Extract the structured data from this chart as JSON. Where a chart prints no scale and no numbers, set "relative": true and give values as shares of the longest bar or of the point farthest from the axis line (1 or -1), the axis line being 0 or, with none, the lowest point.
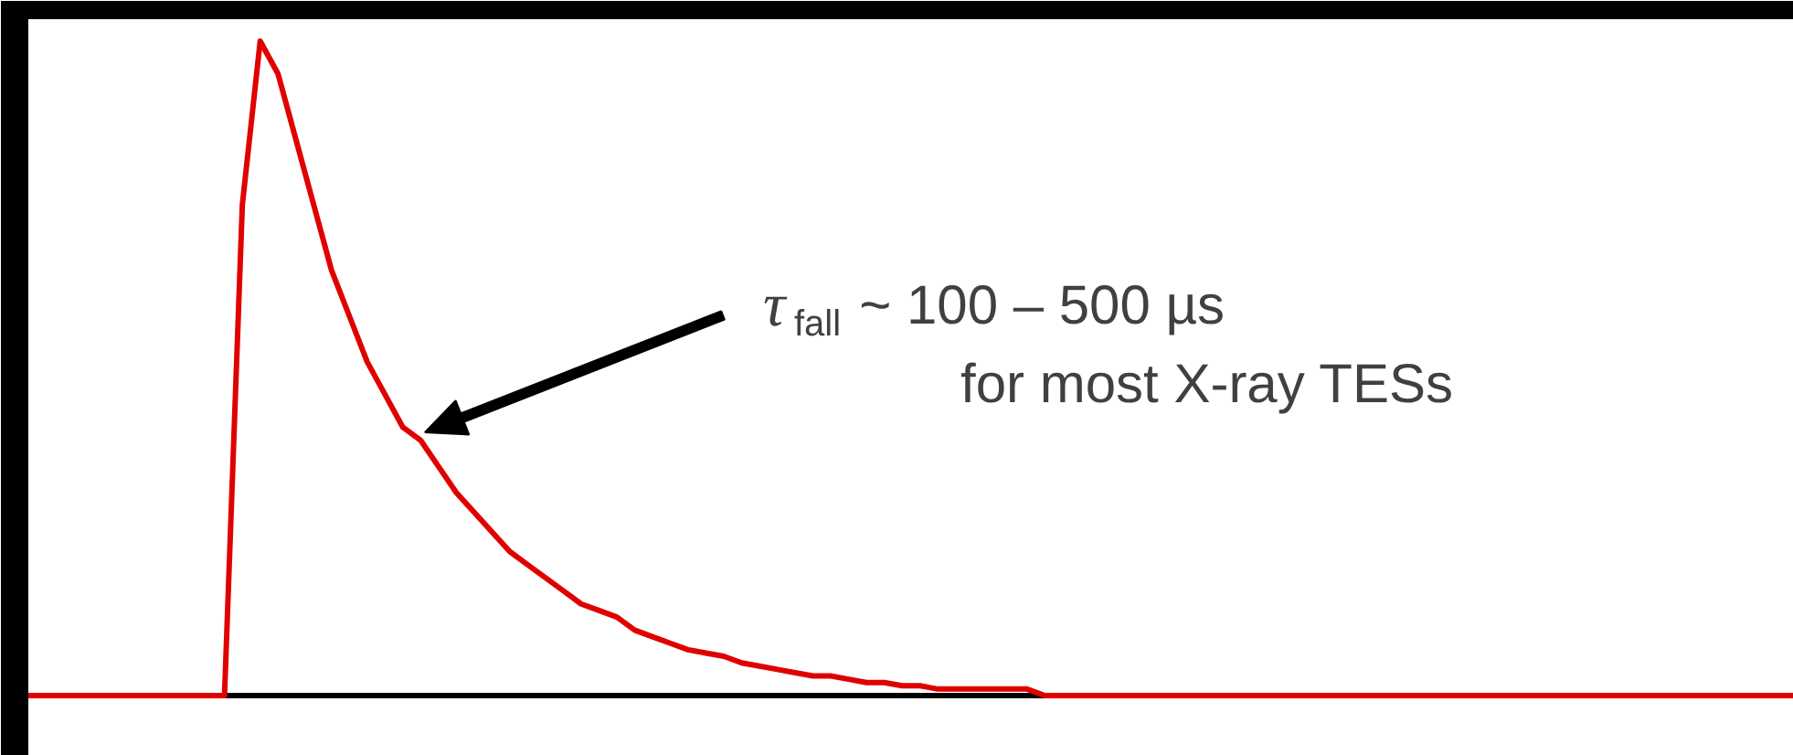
{
  "chart_data": {
    "type": "line",
    "relative": true,
    "color": "#e00000",
    "annotations": [
      "τ$_{fall}$ ~ 100 – 500 µs",
      "for most X-ray TESs"
    ],
    "categories": [
      null,
      null,
      null,
      null,
      null,
      null,
      null,
      null,
      null,
      null,
      null,
      null,
      null,
      null,
      null,
      null,
      null,
      null,
      null,
      null,
      null,
      null,
      null,
      null,
      null,
      null,
      null,
      null,
      null,
      null,
      null,
      null,
      null,
      null,
      null,
      null,
      null,
      null,
      null,
      null,
      null,
      null,
      null,
      null,
      null,
      null,
      null,
      null,
      null,
      null,
      null,
      null,
      null,
      null,
      null,
      null,
      null,
      null,
      null,
      null,
      null,
      null,
      null,
      null,
      null,
      null,
      null,
      null,
      null,
      null,
      null,
      null,
      null,
      null,
      null,
      null,
      null,
      null,
      null,
      null,
      null,
      null,
      null,
      null,
      null,
      null,
      null,
      null,
      null,
      null,
      null,
      null,
      null,
      null,
      null,
      null,
      null,
      null,
      null,
      null
    ],
    "values": [
      0,
      0,
      0,
      0,
      0,
      0,
      0,
      0,
      0,
      0,
      0,
      0,
      0.75,
      1,
      0.95,
      0.85,
      0.75,
      0.65,
      0.58,
      0.51,
      0.46,
      0.41,
      0.39,
      0.35,
      0.31,
      0.28,
      0.25,
      0.22,
      0.2,
      0.18,
      0.16,
      0.14,
      0.13,
      0.12,
      0.1,
      0.09,
      0.08,
      0.07,
      0.065,
      0.06,
      0.05,
      0.045,
      0.04,
      0.035,
      0.03,
      0.03,
      0.025,
      0.02,
      0.02,
      0.015,
      0.015,
      0.01,
      0.01,
      0.01,
      0.01,
      0.01,
      0.01,
      0,
      0,
      0,
      0,
      0,
      0,
      0,
      0,
      0,
      0,
      0,
      0,
      0,
      0,
      0,
      0,
      0,
      0,
      0,
      0,
      0,
      0,
      0,
      0,
      0,
      0,
      0,
      0,
      0,
      0,
      0,
      0,
      0,
      0,
      0,
      0,
      0,
      0,
      0,
      0,
      0,
      0,
      0
    ]
  }
}
